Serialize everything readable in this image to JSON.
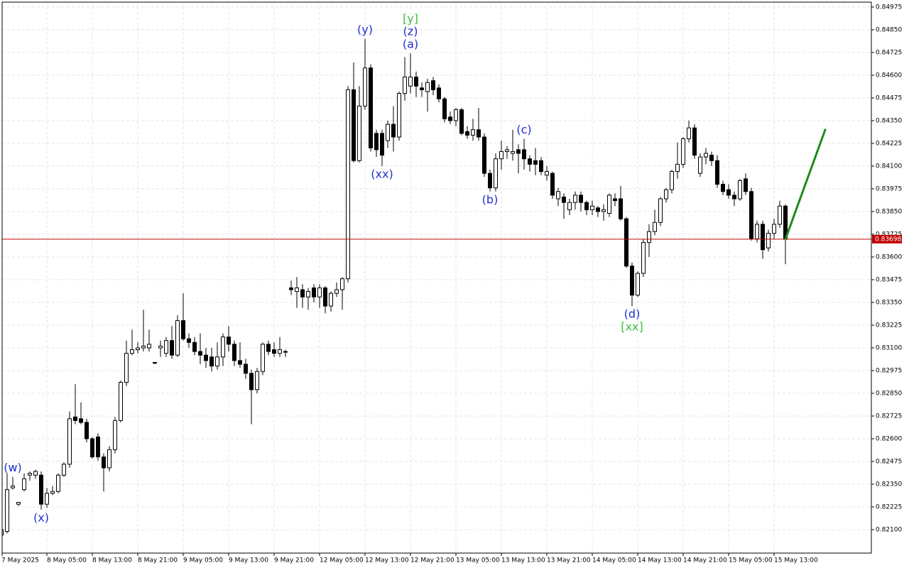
{
  "chart_data": {
    "type": "candlestick",
    "categories": [
      "7 May 2025",
      null,
      null,
      null,
      null,
      null,
      null,
      null,
      "8 May 05:00",
      null,
      null,
      null,
      null,
      null,
      null,
      null,
      "8 May 13:00",
      null,
      null,
      null,
      null,
      null,
      null,
      null,
      "8 May 21:00",
      null,
      null,
      null,
      null,
      null,
      null,
      null,
      "9 May 05:00",
      null,
      null,
      null,
      null,
      null,
      null,
      null,
      "9 May 13:00",
      null,
      null,
      null,
      null,
      null,
      null,
      null,
      "9 May 21:00",
      null,
      null,
      null,
      null,
      null,
      null,
      null,
      "12 May 05:00",
      null,
      null,
      null,
      null,
      null,
      null,
      null,
      "12 May 13:00",
      null,
      null,
      null,
      null,
      null,
      null,
      null,
      "12 May 21:00",
      null,
      null,
      null,
      null,
      null,
      null,
      null,
      "13 May 05:00",
      null,
      null,
      null,
      null,
      null,
      null,
      null,
      "13 May 13:00",
      null,
      null,
      null,
      null,
      null,
      null,
      null,
      "13 May 21:00",
      null,
      null,
      null,
      null,
      null,
      null,
      null,
      "14 May 05:00",
      null,
      null,
      null,
      null,
      null,
      null,
      null,
      "14 May 13:00",
      null,
      null,
      null,
      null,
      null,
      null,
      null,
      "14 May 21:00",
      null,
      null,
      null,
      null,
      null,
      null,
      null,
      "15 May 05:00",
      null,
      null,
      null,
      null,
      null,
      null,
      null,
      "15 May 13:00",
      null,
      null
    ],
    "open": [
      0.8207,
      0.8209,
      0.8233,
      0.8224,
      0.8232,
      0.824,
      0.824,
      0.824,
      0.8224,
      0.823,
      0.8231,
      0.824,
      0.8246,
      0.8272,
      0.8271,
      0.8269,
      0.826,
      0.8261,
      0.825,
      0.8244,
      0.8254,
      0.827,
      0.8291,
      0.8307,
      0.8309,
      0.831,
      0.831,
      0.8302,
      0.831,
      0.8307,
      0.8314,
      0.8306,
      0.8325,
      0.8315,
      0.8313,
      0.8308,
      0.8306,
      0.8305,
      0.83,
      0.8305,
      0.8316,
      0.8312,
      0.8303,
      0.8301,
      0.8296,
      0.8287,
      0.8297,
      0.8312,
      0.8309,
      0.8307,
      0.8308,
      0.8343,
      0.8341,
      0.8342,
      0.8338,
      0.8343,
      0.8338,
      0.8343,
      0.8333,
      0.834,
      0.8342,
      0.8348,
      0.8452,
      0.8413,
      0.8443,
      0.8464,
      0.8428,
      0.8428,
      0.8424,
      0.8433,
      0.8426,
      0.845,
      0.8454,
      0.8459,
      0.8453,
      0.8451,
      0.8457,
      0.8453,
      0.8447,
      0.8437,
      0.8435,
      0.8441,
      0.8429,
      0.8427,
      0.843,
      0.8426,
      0.8406,
      0.8398,
      0.8414,
      0.8418,
      0.8417,
      0.8419,
      0.8419,
      0.8414,
      0.8413,
      0.8413,
      0.8405,
      0.8406,
      0.8392,
      0.8393,
      0.8386,
      0.839,
      0.8394,
      0.839,
      0.8386,
      0.8387,
      0.8385,
      0.8384,
      0.8392,
      0.8392,
      0.8381,
      0.8355,
      0.8339,
      0.8351,
      0.8368,
      0.8374,
      0.8379,
      0.8392,
      0.8397,
      0.8407,
      0.8411,
      0.8425,
      0.8431,
      0.8406,
      0.8415,
      0.8416,
      0.8413,
      0.84,
      0.8397,
      0.8394,
      0.8392,
      0.8403,
      0.8396,
      0.837,
      0.8378,
      0.8365,
      0.8373,
      0.8378,
      0.8388
    ],
    "high": [
      0.8212,
      0.8241,
      0.8239,
      0.8225,
      0.8241,
      0.8242,
      0.8243,
      0.8242,
      0.8233,
      0.8234,
      0.8241,
      0.8247,
      0.8275,
      0.829,
      0.828,
      0.8271,
      0.8261,
      0.8263,
      0.8252,
      0.8256,
      0.8272,
      0.8292,
      0.8314,
      0.832,
      0.8313,
      0.8331,
      0.832,
      0.8302,
      0.8314,
      0.8316,
      0.8322,
      0.8328,
      0.834,
      0.8318,
      0.8316,
      0.8318,
      0.831,
      0.831,
      0.8313,
      0.8318,
      0.8322,
      0.8314,
      0.8313,
      0.8304,
      0.8298,
      0.8299,
      0.8313,
      0.8314,
      0.8313,
      0.8316,
      0.8309,
      0.8347,
      0.8349,
      0.8345,
      0.8343,
      0.8345,
      0.8345,
      0.8344,
      0.8341,
      0.8346,
      0.8349,
      0.8454,
      0.8467,
      0.8454,
      0.848,
      0.8466,
      0.843,
      0.843,
      0.8435,
      0.8443,
      0.8451,
      0.847,
      0.8472,
      0.8462,
      0.8456,
      0.8458,
      0.8459,
      0.8455,
      0.8448,
      0.844,
      0.8442,
      0.8442,
      0.8432,
      0.8436,
      0.8442,
      0.8428,
      0.8408,
      0.8417,
      0.8424,
      0.8421,
      0.843,
      0.8422,
      0.8425,
      0.8416,
      0.842,
      0.8415,
      0.841,
      0.8407,
      0.8398,
      0.8395,
      0.8392,
      0.8396,
      0.8396,
      0.8391,
      0.8391,
      0.8388,
      0.8389,
      0.8395,
      0.8395,
      0.8399,
      0.8382,
      0.8357,
      0.8352,
      0.837,
      0.8378,
      0.8386,
      0.8393,
      0.8398,
      0.8408,
      0.8423,
      0.8426,
      0.8435,
      0.8433,
      0.8417,
      0.842,
      0.8418,
      0.8416,
      0.8402,
      0.84,
      0.8396,
      0.8403,
      0.8406,
      0.8398,
      0.838,
      0.838,
      0.8375,
      0.8381,
      0.8391,
      0.8389
    ],
    "low": [
      0.82,
      0.8208,
      0.8232,
      0.8223,
      0.8231,
      0.8237,
      0.8238,
      0.8221,
      0.8222,
      0.8229,
      0.823,
      0.8239,
      0.8244,
      0.8268,
      0.8268,
      0.8258,
      0.8249,
      0.8248,
      0.8231,
      0.8242,
      0.8252,
      0.8269,
      0.8289,
      0.8306,
      0.8307,
      0.8308,
      0.8308,
      0.8301,
      0.8305,
      0.8305,
      0.8304,
      0.8305,
      0.8314,
      0.831,
      0.8306,
      0.8301,
      0.8299,
      0.8297,
      0.8298,
      0.83,
      0.8308,
      0.83,
      0.8299,
      0.8293,
      0.8268,
      0.8285,
      0.8295,
      0.8306,
      0.8305,
      0.8305,
      0.8305,
      0.8339,
      0.8332,
      0.8332,
      0.8331,
      0.8335,
      0.8332,
      0.8329,
      0.833,
      0.8338,
      0.8331,
      0.8346,
      0.8412,
      0.8412,
      0.8441,
      0.8418,
      0.8415,
      0.841,
      0.842,
      0.8418,
      0.8424,
      0.8446,
      0.845,
      0.8448,
      0.8448,
      0.844,
      0.8449,
      0.8445,
      0.8434,
      0.8433,
      0.8432,
      0.8427,
      0.8425,
      0.8424,
      0.8424,
      0.8404,
      0.8396,
      0.8396,
      0.8408,
      0.8414,
      0.8413,
      0.8406,
      0.8408,
      0.8407,
      0.8405,
      0.8405,
      0.8402,
      0.8392,
      0.8388,
      0.8381,
      0.8383,
      0.8386,
      0.8385,
      0.8383,
      0.8383,
      0.8382,
      0.838,
      0.8382,
      0.8388,
      0.838,
      0.8354,
      0.8333,
      0.8338,
      0.8349,
      0.836,
      0.8372,
      0.8377,
      0.839,
      0.8395,
      0.8403,
      0.8409,
      0.8423,
      0.8414,
      0.8404,
      0.8411,
      0.841,
      0.8398,
      0.8394,
      0.8392,
      0.8388,
      0.8391,
      0.8394,
      0.8369,
      0.8368,
      0.8359,
      0.8363,
      0.837,
      0.8376,
      0.8356
    ],
    "close": [
      0.821,
      0.8232,
      0.8234,
      0.8225,
      0.8238,
      0.8241,
      0.8242,
      0.8224,
      0.823,
      0.8231,
      0.824,
      0.8246,
      0.8271,
      0.827,
      0.8269,
      0.826,
      0.825,
      0.825,
      0.8244,
      0.8254,
      0.827,
      0.8291,
      0.8307,
      0.8309,
      0.831,
      0.8311,
      0.8312,
      0.8302,
      0.8311,
      0.8314,
      0.8306,
      0.8325,
      0.8315,
      0.8313,
      0.8308,
      0.8306,
      0.8303,
      0.83,
      0.8305,
      0.8316,
      0.8312,
      0.8303,
      0.8301,
      0.8296,
      0.8287,
      0.8297,
      0.8312,
      0.8308,
      0.8307,
      0.8309,
      0.8308,
      0.8342,
      0.8343,
      0.8338,
      0.8341,
      0.8338,
      0.8343,
      0.8333,
      0.834,
      0.8342,
      0.8348,
      0.8452,
      0.8413,
      0.8443,
      0.8464,
      0.842,
      0.8419,
      0.8416,
      0.8433,
      0.8426,
      0.845,
      0.8459,
      0.8459,
      0.8454,
      0.8452,
      0.8456,
      0.8452,
      0.8447,
      0.8436,
      0.8435,
      0.8441,
      0.8428,
      0.8427,
      0.843,
      0.8426,
      0.8406,
      0.8398,
      0.8414,
      0.8418,
      0.8419,
      0.8418,
      0.8417,
      0.8414,
      0.8411,
      0.8411,
      0.8407,
      0.8407,
      0.8394,
      0.8396,
      0.839,
      0.839,
      0.8394,
      0.839,
      0.8386,
      0.8388,
      0.8385,
      0.8386,
      0.8394,
      0.8391,
      0.8381,
      0.8355,
      0.8339,
      0.8351,
      0.8368,
      0.8374,
      0.8379,
      0.8392,
      0.8397,
      0.8407,
      0.8411,
      0.8425,
      0.8431,
      0.8416,
      0.8415,
      0.8417,
      0.8413,
      0.84,
      0.8396,
      0.8394,
      0.8392,
      0.8402,
      0.8396,
      0.837,
      0.8378,
      0.8364,
      0.8373,
      0.8378,
      0.8388,
      0.83698
    ],
    "ylim": [
      0.81971,
      0.85002
    ],
    "yticks": [
      {
        "value": 0.84975,
        "label": "0.84975"
      },
      {
        "value": 0.8485,
        "label": "0.84850"
      },
      {
        "value": 0.84725,
        "label": "0.84725"
      },
      {
        "value": 0.846,
        "label": "0.84600"
      },
      {
        "value": 0.84475,
        "label": "0.84475"
      },
      {
        "value": 0.8435,
        "label": "0.84350"
      },
      {
        "value": 0.84225,
        "label": "0.84225"
      },
      {
        "value": 0.841,
        "label": "0.84100"
      },
      {
        "value": 0.83975,
        "label": "0.83975"
      },
      {
        "value": 0.8385,
        "label": "0.83850"
      },
      {
        "value": 0.83725,
        "label": "0.83725"
      },
      {
        "value": 0.836,
        "label": "0.83600"
      },
      {
        "value": 0.83475,
        "label": "0.83475"
      },
      {
        "value": 0.8335,
        "label": "0.83350"
      },
      {
        "value": 0.83225,
        "label": "0.83225"
      },
      {
        "value": 0.831,
        "label": "0.83100"
      },
      {
        "value": 0.82975,
        "label": "0.82975"
      },
      {
        "value": 0.8285,
        "label": "0.82850"
      },
      {
        "value": 0.82725,
        "label": "0.82725"
      },
      {
        "value": 0.826,
        "label": "0.82600"
      },
      {
        "value": 0.82475,
        "label": "0.82475"
      },
      {
        "value": 0.8235,
        "label": "0.82350"
      },
      {
        "value": 0.82225,
        "label": "0.82225"
      },
      {
        "value": 0.821,
        "label": "0.82100"
      }
    ],
    "grid": true,
    "last_price": 0.83698,
    "last_price_color": "#c00000",
    "forecast": {
      "start": 0.83698,
      "end": 0.843,
      "color": "#1f8a1f"
    },
    "annotations": [
      {
        "text": "(w)",
        "candle": 2,
        "side": "above",
        "color": "#1f2fd0"
      },
      {
        "text": "(x)",
        "candle": 7,
        "side": "below",
        "color": "#1f2fd0"
      },
      {
        "text": "(y)",
        "candle": 64,
        "side": "above",
        "color": "#1f2fd0"
      },
      {
        "text": "(xx)",
        "candle": 67,
        "side": "below",
        "color": "#1f2fd0"
      },
      {
        "text": "(a)",
        "candle": 72,
        "side": "above",
        "color": "#1f2fd0"
      },
      {
        "text": "(z)",
        "candle": 72,
        "side": "above",
        "color": "#1f2fd0"
      },
      {
        "text": "[y]",
        "candle": 72,
        "side": "above",
        "color": "#3fc23f"
      },
      {
        "text": "(b)",
        "candle": 86,
        "side": "below",
        "color": "#1f2fd0"
      },
      {
        "text": "(c)",
        "candle": 92,
        "side": "above",
        "color": "#1f2fd0"
      },
      {
        "text": "(d)",
        "candle": 111,
        "side": "below",
        "color": "#1f2fd0"
      },
      {
        "text": "[xx]",
        "candle": 111,
        "side": "below",
        "color": "#3fc23f"
      }
    ]
  }
}
